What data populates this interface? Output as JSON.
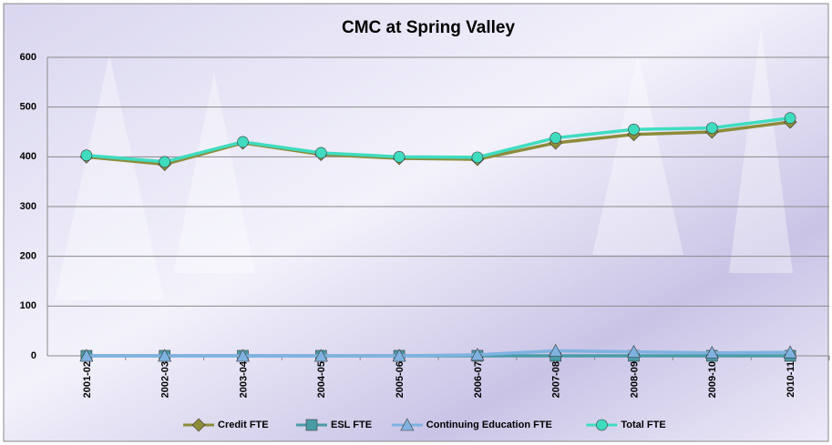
{
  "chart_data": {
    "type": "line",
    "title": "CMC at Spring Valley",
    "categories": [
      "2001-02",
      "2002-03",
      "2003-04",
      "2004-05",
      "2005-06",
      "2006-07",
      "2007-08",
      "2008-09",
      "2009-10",
      "2010-11"
    ],
    "series": [
      {
        "name": "Credit FTE",
        "color": "#8c8c3a",
        "marker": "diamond",
        "values": [
          400,
          385,
          428,
          405,
          397,
          395,
          428,
          445,
          450,
          470
        ]
      },
      {
        "name": "ESL FTE",
        "color": "#4a9ba6",
        "marker": "square",
        "values": [
          0,
          0,
          0,
          0,
          0,
          0,
          0,
          0,
          0,
          0
        ]
      },
      {
        "name": "Continuing Education FTE",
        "color": "#7fb2e0",
        "marker": "triangle",
        "values": [
          0,
          0,
          0,
          0,
          0,
          2,
          10,
          8,
          6,
          7
        ]
      },
      {
        "name": "Total FTE",
        "color": "#3fdcc0",
        "marker": "circle",
        "values": [
          403,
          390,
          430,
          408,
          400,
          399,
          438,
          455,
          458,
          478
        ]
      }
    ],
    "ylim": [
      0,
      600
    ],
    "yticks": [
      0,
      100,
      200,
      300,
      400,
      500,
      600
    ],
    "grid": true,
    "legend": "bottom"
  }
}
